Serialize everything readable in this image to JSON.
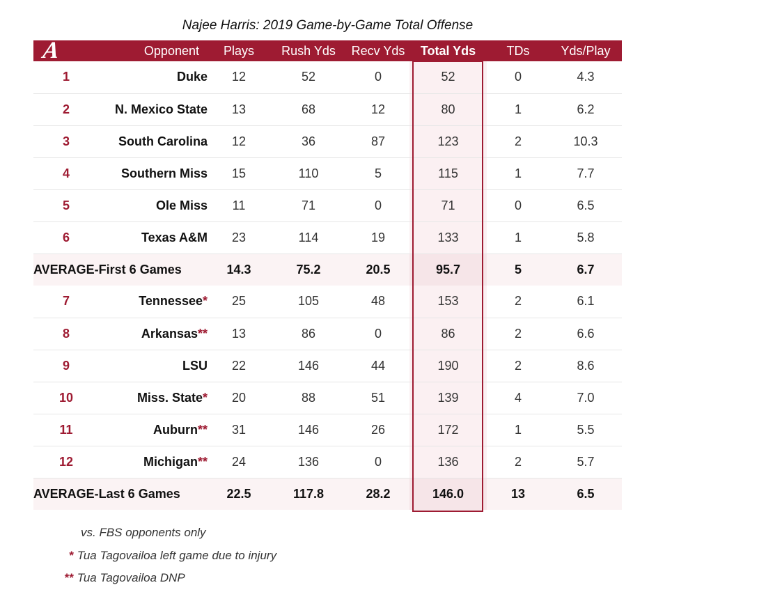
{
  "title": "Najee Harris: 2019 Game-by-Game Total Offense",
  "colors": {
    "accent": "#9e1b32",
    "row_highlight": "#fbf3f4"
  },
  "logo": {
    "icon": "alabama-script-a-logo",
    "glyph": "A"
  },
  "chart_data": {
    "type": "table",
    "title": "Najee Harris: 2019 Game-by-Game Total Offense",
    "columns": [
      "Opponent",
      "Plays",
      "Rush Yds",
      "Recv Yds",
      "Total Yds",
      "TDs",
      "Yds/Play"
    ],
    "rows": [
      {
        "kind": "game",
        "num": "1",
        "opponent": "Duke",
        "mark": "",
        "plays": "12",
        "rush": "52",
        "recv": "0",
        "total": "52",
        "tds": "0",
        "ypp": "4.3"
      },
      {
        "kind": "game",
        "num": "2",
        "opponent": "N. Mexico State",
        "mark": "",
        "plays": "13",
        "rush": "68",
        "recv": "12",
        "total": "80",
        "tds": "1",
        "ypp": "6.2"
      },
      {
        "kind": "game",
        "num": "3",
        "opponent": "South Carolina",
        "mark": "",
        "plays": "12",
        "rush": "36",
        "recv": "87",
        "total": "123",
        "tds": "2",
        "ypp": "10.3"
      },
      {
        "kind": "game",
        "num": "4",
        "opponent": "Southern Miss",
        "mark": "",
        "plays": "15",
        "rush": "110",
        "recv": "5",
        "total": "115",
        "tds": "1",
        "ypp": "7.7"
      },
      {
        "kind": "game",
        "num": "5",
        "opponent": "Ole Miss",
        "mark": "",
        "plays": "11",
        "rush": "71",
        "recv": "0",
        "total": "71",
        "tds": "0",
        "ypp": "6.5"
      },
      {
        "kind": "game",
        "num": "6",
        "opponent": "Texas A&M",
        "mark": "",
        "plays": "23",
        "rush": "114",
        "recv": "19",
        "total": "133",
        "tds": "1",
        "ypp": "5.8"
      },
      {
        "kind": "avg",
        "label": "AVERAGE-First 6 Games",
        "plays": "14.3",
        "rush": "75.2",
        "recv": "20.5",
        "total": "95.7",
        "tds": "5",
        "ypp": "6.7"
      },
      {
        "kind": "game",
        "num": "7",
        "opponent": "Tennessee",
        "mark": "*",
        "plays": "25",
        "rush": "105",
        "recv": "48",
        "total": "153",
        "tds": "2",
        "ypp": "6.1"
      },
      {
        "kind": "game",
        "num": "8",
        "opponent": "Arkansas",
        "mark": "**",
        "plays": "13",
        "rush": "86",
        "recv": "0",
        "total": "86",
        "tds": "2",
        "ypp": "6.6"
      },
      {
        "kind": "game",
        "num": "9",
        "opponent": "LSU",
        "mark": "",
        "plays": "22",
        "rush": "146",
        "recv": "44",
        "total": "190",
        "tds": "2",
        "ypp": "8.6"
      },
      {
        "kind": "game",
        "num": "10",
        "opponent": "Miss. State",
        "mark": "*",
        "plays": "20",
        "rush": "88",
        "recv": "51",
        "total": "139",
        "tds": "4",
        "ypp": "7.0"
      },
      {
        "kind": "game",
        "num": "11",
        "opponent": "Auburn",
        "mark": "**",
        "plays": "31",
        "rush": "146",
        "recv": "26",
        "total": "172",
        "tds": "1",
        "ypp": "5.5"
      },
      {
        "kind": "game",
        "num": "12",
        "opponent": "Michigan",
        "mark": "**",
        "plays": "24",
        "rush": "136",
        "recv": "0",
        "total": "136",
        "tds": "2",
        "ypp": "5.7"
      },
      {
        "kind": "avg",
        "label": "AVERAGE-Last 6 Games",
        "plays": "22.5",
        "rush": "117.8",
        "recv": "28.2",
        "total": "146.0",
        "tds": "13",
        "ypp": "6.5"
      }
    ]
  },
  "footnotes": [
    {
      "mark": "",
      "text": "vs. FBS opponents only"
    },
    {
      "mark": "*",
      "text": "Tua Tagovailoa left game due to injury"
    },
    {
      "mark": "**",
      "text": "Tua Tagovailoa DNP"
    }
  ]
}
